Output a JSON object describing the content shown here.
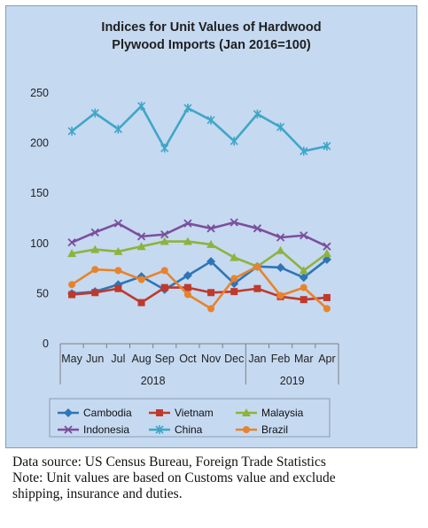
{
  "chart_data": {
    "type": "line",
    "title_line1": "Indices for Unit Values of Hardwood",
    "title_line2": "Plywood Imports (Jan 2016=100)",
    "categories": [
      "May",
      "Jun",
      "Jul",
      "Aug",
      "Sep",
      "Oct",
      "Nov",
      "Dec",
      "Jan",
      "Feb",
      "Mar",
      "Apr"
    ],
    "year_groups": [
      {
        "label": "2018",
        "count": 8
      },
      {
        "label": "2019",
        "count": 4
      }
    ],
    "ylim": [
      0,
      250
    ],
    "yticks": [
      0,
      50,
      100,
      150,
      200,
      250
    ],
    "grid": false,
    "legend_position": "bottom",
    "series": [
      {
        "name": "Cambodia",
        "color": "#2e75b6",
        "marker": "diamond",
        "values": [
          50,
          52,
          59,
          67,
          54,
          68,
          82,
          60,
          77,
          76,
          66,
          84
        ]
      },
      {
        "name": "Vietnam",
        "color": "#c0392b",
        "marker": "square",
        "values": [
          49,
          51,
          55,
          41,
          56,
          56,
          51,
          52,
          55,
          47,
          44,
          46
        ]
      },
      {
        "name": "Malaysia",
        "color": "#8db33c",
        "marker": "triangle",
        "values": [
          90,
          94,
          92,
          97,
          102,
          102,
          99,
          86,
          77,
          93,
          73,
          90
        ]
      },
      {
        "name": "Indonesia",
        "color": "#7b4f9d",
        "marker": "x",
        "values": [
          101,
          111,
          120,
          107,
          109,
          120,
          115,
          121,
          115,
          106,
          108,
          97
        ]
      },
      {
        "name": "China",
        "color": "#3fa6c6",
        "marker": "star",
        "values": [
          212,
          230,
          214,
          237,
          195,
          235,
          223,
          202,
          229,
          216,
          192,
          197
        ]
      },
      {
        "name": "Brazil",
        "color": "#e8832b",
        "marker": "circle",
        "values": [
          59,
          74,
          73,
          64,
          73,
          49,
          35,
          65,
          77,
          48,
          56,
          35
        ]
      }
    ]
  },
  "notes": {
    "source": "Data source: US Census Bureau, Foreign Trade Statistics",
    "note_line1": "Note: Unit values are based on Customs value and exclude",
    "note_line2": "shipping, insurance and duties."
  }
}
